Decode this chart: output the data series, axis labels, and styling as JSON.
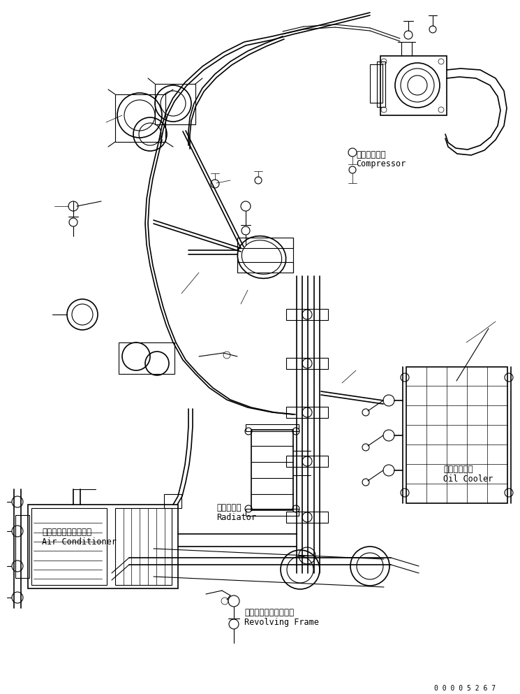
{
  "background_color": "#ffffff",
  "figure_width": 7.45,
  "figure_height": 9.93,
  "dpi": 100,
  "labels": {
    "compressor_jp": "コンプレッサ",
    "compressor_en": "Compressor",
    "oil_cooler_jp": "オイルクーラ",
    "oil_cooler_en": "Oil Cooler",
    "radiator_jp": "ラジエータ",
    "radiator_en": "Radiator",
    "air_cond_jp": "エアーコンディショナ",
    "air_cond_en": "Air Conditioner",
    "revolving_jp": "レボルビングフレーム",
    "revolving_en": "Revolving Frame",
    "part_number": "0 0 0 0 5 2 6 7"
  }
}
